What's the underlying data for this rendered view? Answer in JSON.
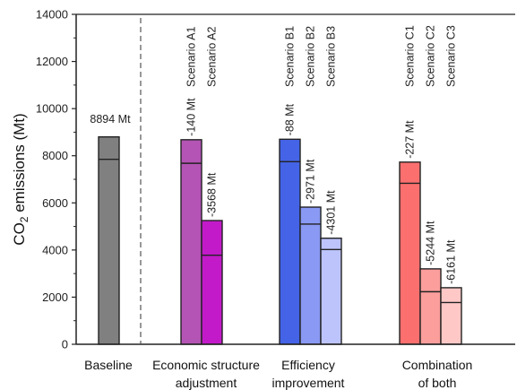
{
  "chart_data": {
    "type": "bar",
    "ylabel_main": "CO",
    "ylabel_sub": "2",
    "ylabel_rest": " emissions (Mt)",
    "ylim": [
      0,
      14000
    ],
    "yticks": [
      "0",
      "2000",
      "4000",
      "6000",
      "8000",
      "10000",
      "12000",
      "14000"
    ],
    "baseline_annotation": "8894 Mt",
    "groups": [
      {
        "label_lines": [
          "Baseline"
        ]
      },
      {
        "label_lines": [
          "Economic structure",
          "adjustment"
        ]
      },
      {
        "label_lines": [
          "Efficiency",
          "improvement"
        ]
      },
      {
        "label_lines": [
          "Combination",
          "of both"
        ]
      }
    ],
    "bars": [
      {
        "group": 0,
        "name": "",
        "top": 8800,
        "inner_line": 7850,
        "annotation": "",
        "fill": "#808080",
        "stroke": "#222222"
      },
      {
        "group": 1,
        "name": "Scenario A1",
        "top": 8680,
        "inner_line": 7680,
        "annotation": "-140 Mt",
        "fill": "#b454b4",
        "stroke": "#222222"
      },
      {
        "group": 1,
        "name": "Scenario A2",
        "top": 5250,
        "inner_line": 3780,
        "annotation": "-3568 Mt",
        "fill": "#c21ac8",
        "stroke": "#222222"
      },
      {
        "group": 2,
        "name": "Scenario B1",
        "top": 8700,
        "inner_line": 7750,
        "annotation": "-88 Mt",
        "fill": "#4463e6",
        "stroke": "#222222"
      },
      {
        "group": 2,
        "name": "Scenario B2",
        "top": 5820,
        "inner_line": 5100,
        "annotation": "-2971 Mt",
        "fill": "#8a99f3",
        "stroke": "#222222"
      },
      {
        "group": 2,
        "name": "Scenario B3",
        "top": 4500,
        "inner_line": 4020,
        "annotation": "-4301 Mt",
        "fill": "#bcc4fb",
        "stroke": "#222222"
      },
      {
        "group": 3,
        "name": "Scenario C1",
        "top": 7730,
        "inner_line": 6830,
        "annotation": "-227 Mt",
        "fill": "#fb6f6f",
        "stroke": "#222222"
      },
      {
        "group": 3,
        "name": "Scenario C2",
        "top": 3200,
        "inner_line": 2230,
        "annotation": "-5244 Mt",
        "fill": "#fb9e9c",
        "stroke": "#222222"
      },
      {
        "group": 3,
        "name": "Scenario C3",
        "top": 2400,
        "inner_line": 1770,
        "annotation": "-6161 Mt",
        "fill": "#fdc8c6",
        "stroke": "#222222"
      }
    ]
  }
}
